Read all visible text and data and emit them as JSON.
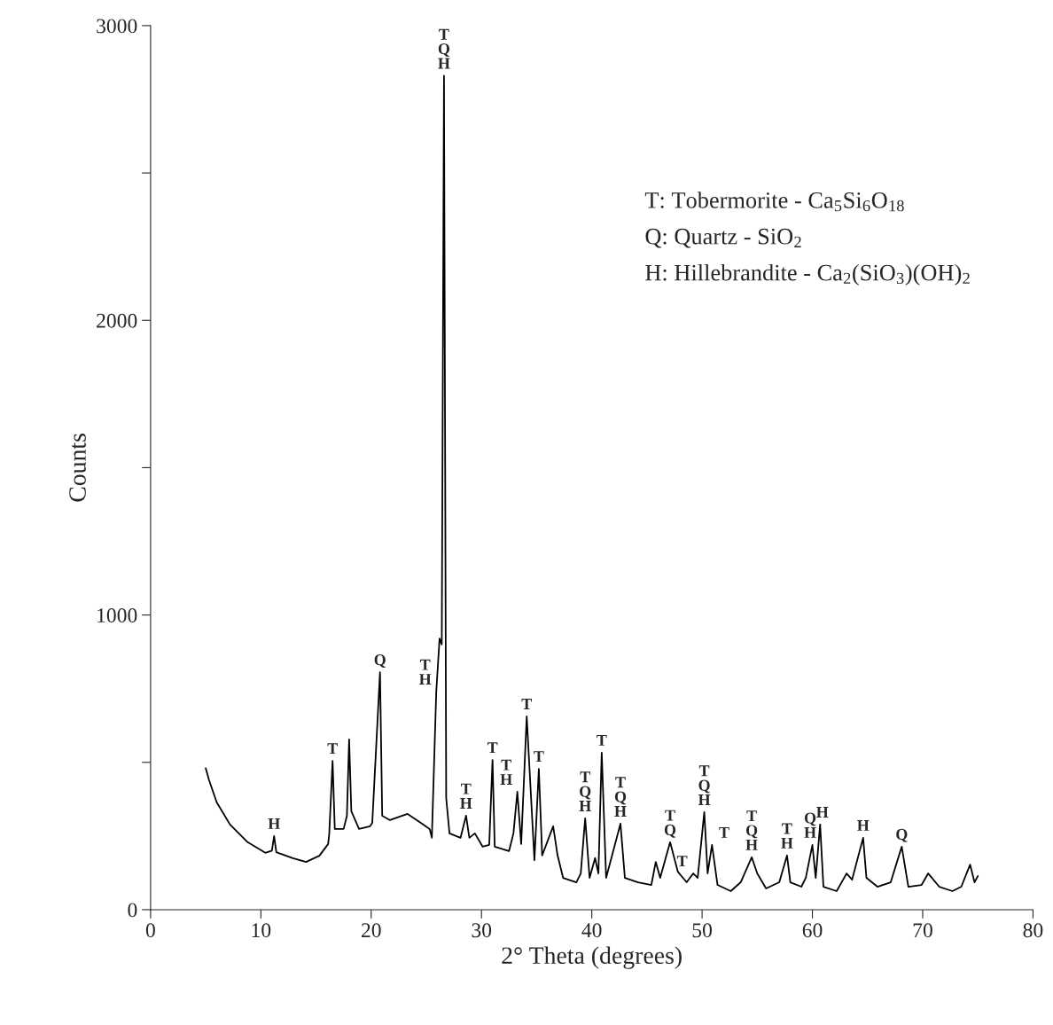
{
  "chart_data": {
    "type": "line",
    "xlabel": "2° Theta (degrees)",
    "ylabel": "Counts",
    "xlim": [
      0,
      80
    ],
    "ylim": [
      0,
      3000
    ],
    "xticks": [
      0,
      10,
      20,
      30,
      40,
      50,
      60,
      70,
      80
    ],
    "yticks": [
      0,
      {
        "value": 500,
        "label": null
      },
      1000,
      {
        "value": 1500,
        "label": null
      },
      2000,
      {
        "value": 2500,
        "label": null
      },
      3000
    ],
    "grid": false,
    "legend": false,
    "marker": "none",
    "line_style": "solid",
    "series": [
      {
        "color": "#000000",
        "x": [
          5.0,
          5.3,
          6.0,
          7.2,
          8.8,
          10.4,
          11.0,
          11.2,
          11.4,
          12.9,
          14.1,
          15.3,
          16.1,
          16.2,
          16.5,
          16.7,
          17.5,
          17.8,
          18.0,
          18.2,
          18.9,
          19.9,
          20.1,
          20.8,
          21.0,
          21.7,
          23.3,
          24.5,
          25.3,
          25.5,
          25.9,
          26.2,
          26.4,
          26.6,
          26.8,
          27.1,
          28.1,
          28.6,
          28.9,
          29.4,
          30.1,
          30.7,
          31.0,
          31.2,
          32.5,
          32.9,
          33.25,
          33.6,
          34.1,
          34.8,
          35.2,
          35.5,
          36.5,
          36.9,
          37.4,
          38.6,
          39.0,
          39.4,
          39.8,
          40.3,
          40.6,
          40.9,
          41.3,
          42.6,
          43.0,
          44.2,
          45.4,
          45.8,
          46.2,
          47.1,
          47.8,
          48.6,
          49.2,
          49.6,
          50.2,
          50.5,
          50.9,
          51.4,
          52.6,
          53.5,
          54.5,
          55.0,
          55.8,
          57.0,
          57.7,
          58.0,
          59.0,
          59.4,
          60.0,
          60.3,
          60.7,
          61.0,
          62.2,
          63.1,
          63.6,
          64.6,
          64.9,
          65.9,
          67.1,
          68.1,
          68.7,
          69.9,
          70.5,
          71.5,
          72.7,
          73.5,
          74.3,
          74.7,
          75.0
        ],
        "values": [
          480,
          440,
          364,
          289,
          229,
          193,
          200,
          250,
          195,
          175,
          162,
          183,
          223,
          259,
          505,
          274,
          274,
          319,
          578,
          334,
          274,
          283,
          295,
          806,
          319,
          304,
          325,
          295,
          274,
          244,
          740,
          920,
          900,
          2830,
          379,
          259,
          244,
          319,
          244,
          259,
          214,
          220,
          508,
          214,
          199,
          259,
          400,
          223,
          656,
          168,
          478,
          184,
          283,
          184,
          108,
          93,
          123,
          310,
          108,
          175,
          123,
          533,
          108,
          292,
          108,
          93,
          84,
          162,
          108,
          229,
          129,
          93,
          123,
          108,
          331,
          123,
          220,
          84,
          63,
          93,
          178,
          123,
          72,
          93,
          184,
          93,
          78,
          108,
          220,
          108,
          289,
          78,
          63,
          123,
          102,
          244,
          108,
          78,
          93,
          214,
          78,
          84,
          123,
          78,
          63,
          78,
          153,
          93,
          114
        ]
      }
    ],
    "annotations": [
      "T: Tobermorite - Ca$_{5}$Si$_{6}$O$_{18}$",
      "Q: Quartz - SiO$_{2}$",
      "H: Hillebrandite - Ca$_{2}$(SiO$_{3}$)(OH)$_{2}$",
      {
        "text": "H",
        "x": 11.2,
        "y": 250
      },
      {
        "text": "T",
        "x": 16.5,
        "y": 505
      },
      {
        "text": "Q",
        "x": 20.8,
        "y": 806
      },
      {
        "text": "T\nH",
        "x": 25.9,
        "y": 740
      },
      {
        "text": "T\nQ\nH",
        "x": 26.6,
        "y": 2830
      },
      {
        "text": "T\nH",
        "x": 28.6,
        "y": 319
      },
      {
        "text": "T",
        "x": 31.0,
        "y": 508
      },
      {
        "text": "T\nH",
        "x": 33.25,
        "y": 400
      },
      {
        "text": "T",
        "x": 34.1,
        "y": 656
      },
      {
        "text": "T",
        "x": 35.2,
        "y": 478
      },
      {
        "text": "T\nQ\nH",
        "x": 39.4,
        "y": 310
      },
      {
        "text": "T",
        "x": 40.9,
        "y": 533
      },
      {
        "text": "T\nQ\nH",
        "x": 42.6,
        "y": 292
      },
      {
        "text": "T\nQ",
        "x": 47.1,
        "y": 229
      },
      {
        "text": "T",
        "x": 49.2,
        "y": 123
      },
      {
        "text": "T\nQ\nH",
        "x": 50.2,
        "y": 331
      },
      {
        "text": "T",
        "x": 51.0,
        "y": 220
      },
      {
        "text": "T\nQ\nH",
        "x": 54.5,
        "y": 178
      },
      {
        "text": "T\nH",
        "x": 57.7,
        "y": 184
      },
      {
        "text": "Q\nH",
        "x": 59.8,
        "y": 220
      },
      {
        "text": "H",
        "x": 60.9,
        "y": 289
      },
      {
        "text": "H",
        "x": 64.6,
        "y": 244
      },
      {
        "text": "Q",
        "x": 68.1,
        "y": 214
      }
    ]
  }
}
